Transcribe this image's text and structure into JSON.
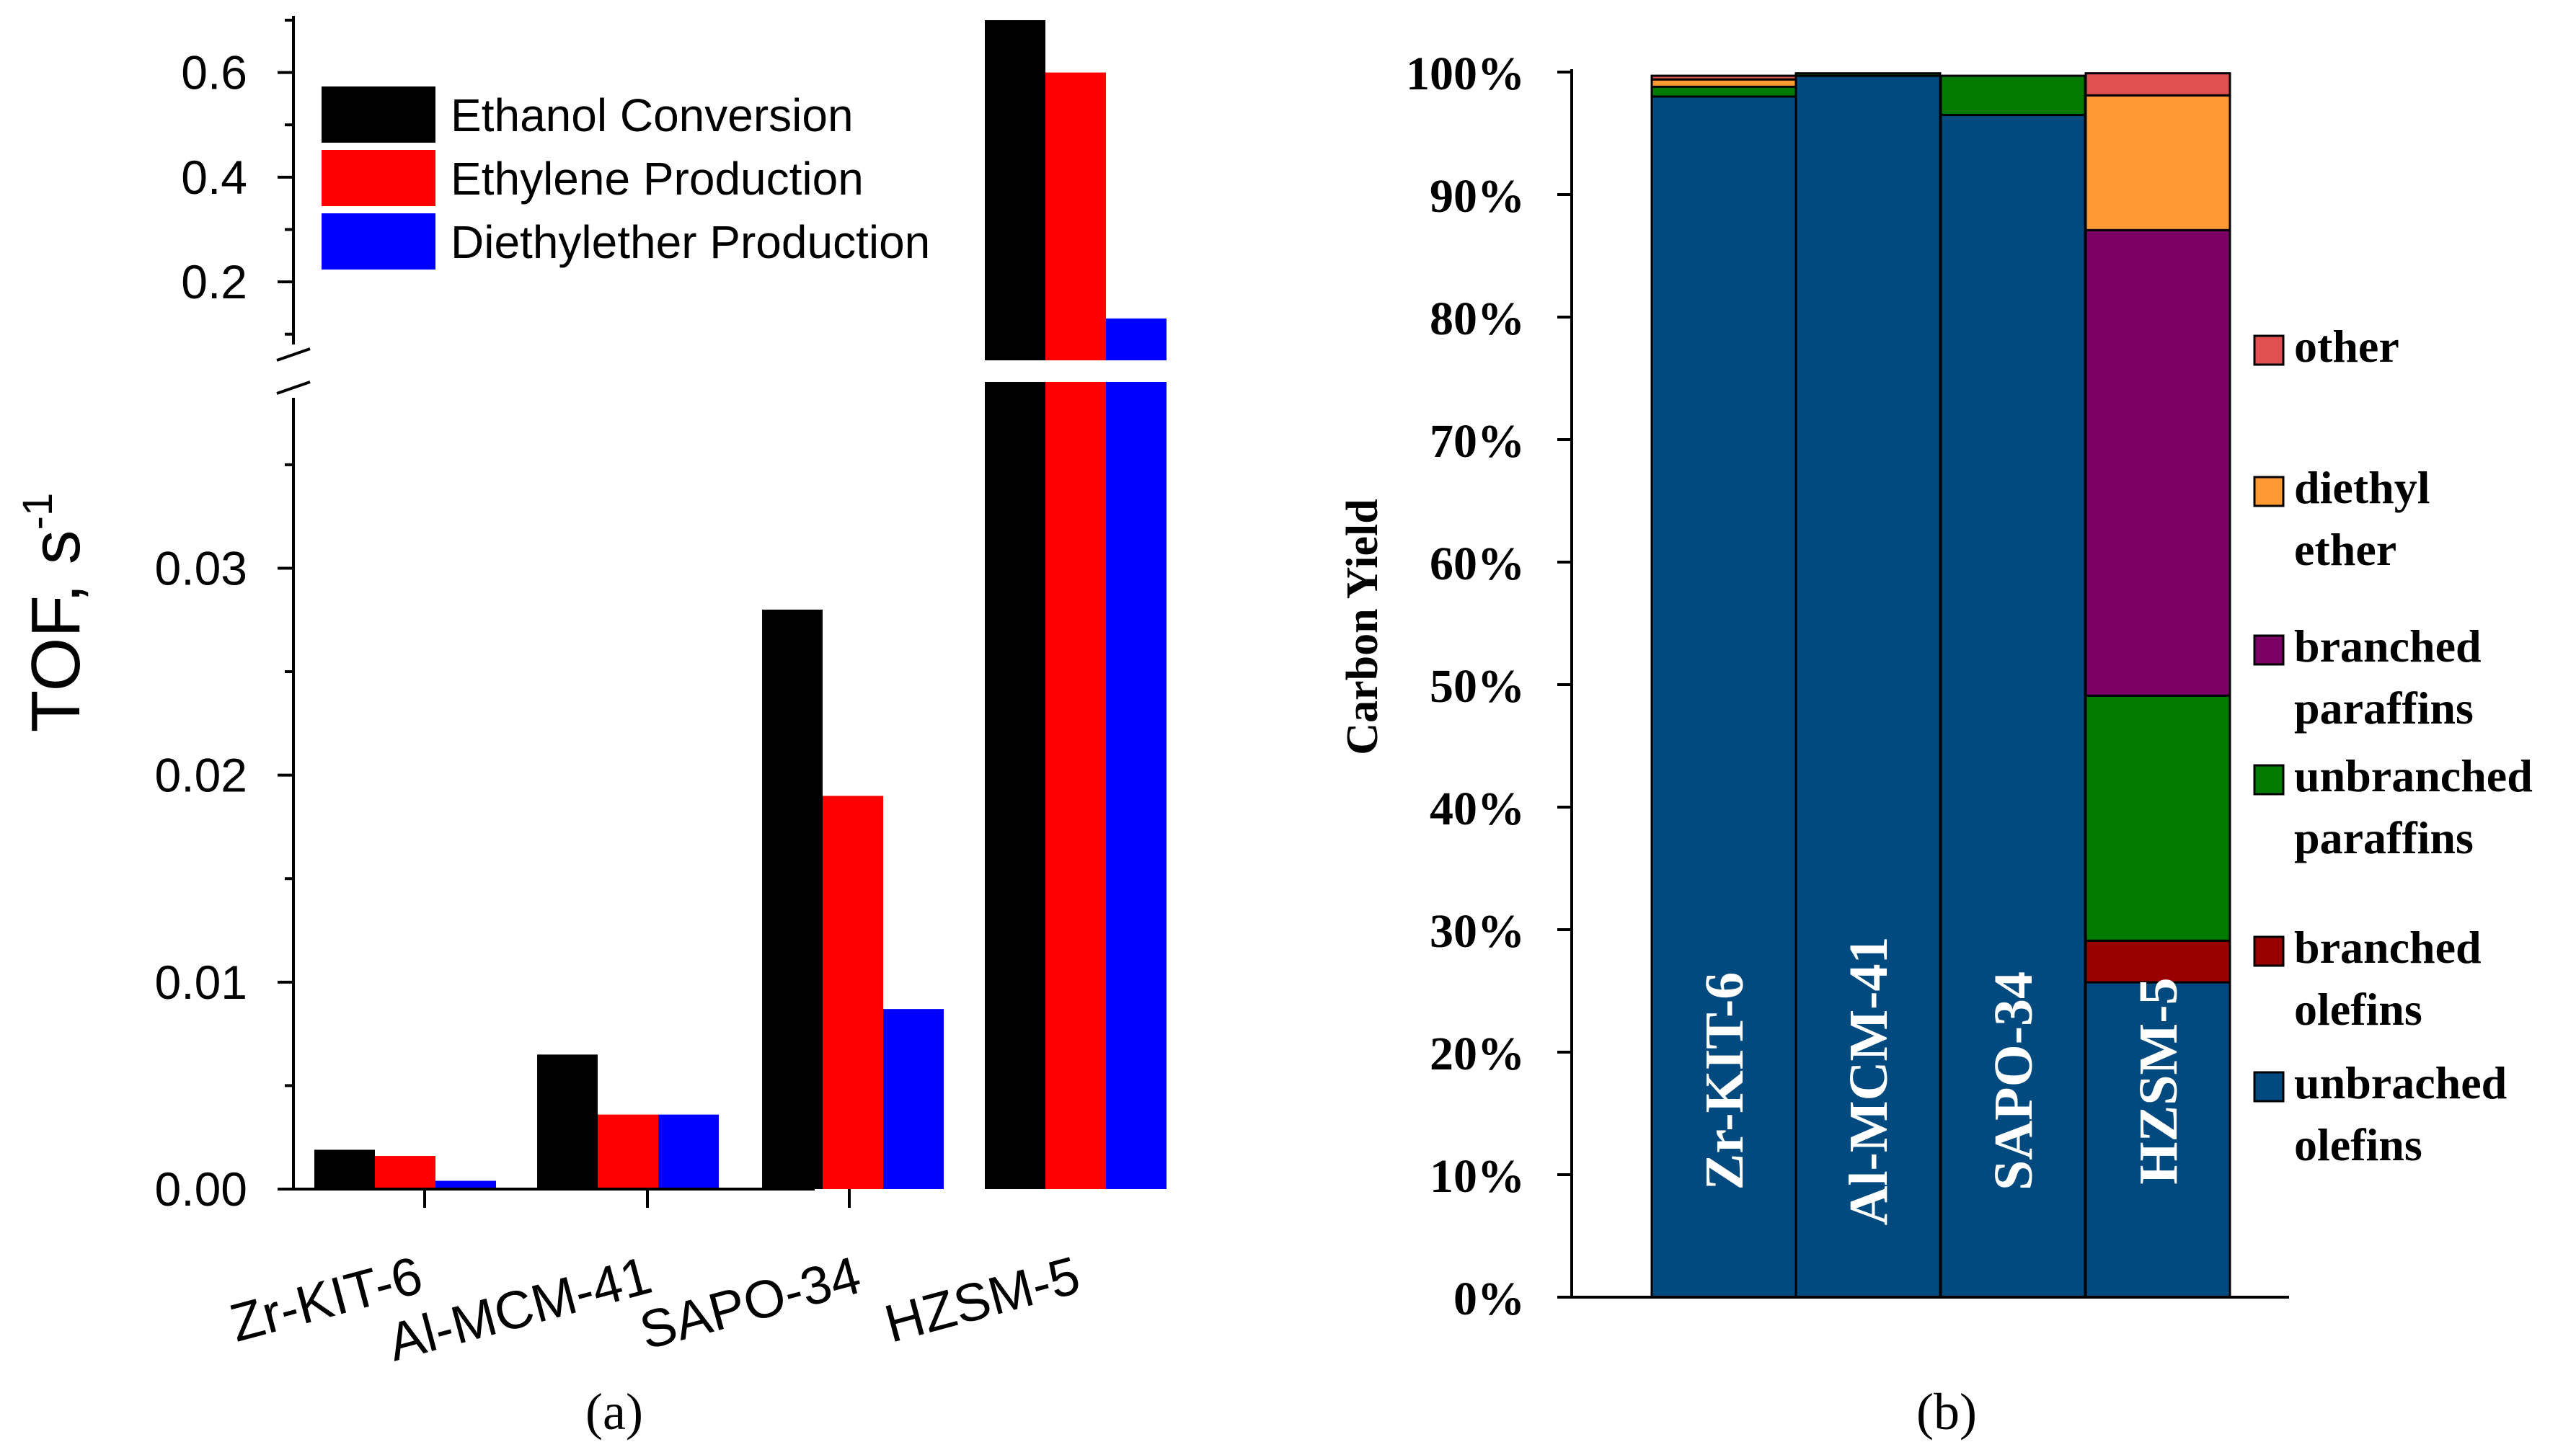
{
  "chart_data": [
    {
      "panel_id": "a",
      "type": "bar",
      "caption": "(a)",
      "ylabel": "TOF, s",
      "ylabel_superscript": "-1",
      "categories": [
        "Zr-KIT-6",
        "Al-MCM-41",
        "SAPO-34",
        "HZSM-5"
      ],
      "series": [
        {
          "name": "Ethanol Conversion",
          "color": "#000000",
          "values": [
            0.0019,
            0.0065,
            0.028,
            0.7
          ]
        },
        {
          "name": "Ethylene Production",
          "color": "#ff0000",
          "values": [
            0.0016,
            0.0036,
            0.019,
            0.6
          ]
        },
        {
          "name": "Diethylether Production",
          "color": "#0000ff",
          "values": [
            0.0004,
            0.0036,
            0.0087,
            0.13
          ]
        }
      ],
      "axis_break": true,
      "lower_ylim": [
        0,
        0.039
      ],
      "upper_ylim": [
        0.05,
        0.7
      ],
      "lower_ticks": [
        "0.00",
        "0.01",
        "0.02",
        "0.03"
      ],
      "lower_tick_values": [
        0,
        0.01,
        0.02,
        0.03
      ],
      "upper_ticks": [
        "0.2",
        "0.4",
        "0.6"
      ],
      "upper_tick_values": [
        0.2,
        0.4,
        0.6
      ],
      "legend_position": "top-left"
    },
    {
      "panel_id": "b",
      "type": "bar",
      "stacked": true,
      "caption": "(b)",
      "ylabel": "Carbon Yield",
      "ylim": [
        0,
        100
      ],
      "yticks": [
        "0%",
        "10%",
        "20%",
        "30%",
        "40%",
        "50%",
        "60%",
        "70%",
        "80%",
        "90%",
        "100%"
      ],
      "ytick_values": [
        0,
        10,
        20,
        30,
        40,
        50,
        60,
        70,
        80,
        90,
        100
      ],
      "categories": [
        "Zr-KIT-6",
        "Al-MCM-41",
        "SAPO-34",
        "HZSM-5"
      ],
      "series": [
        {
          "name": "unbrached olefins",
          "color": "#004a80",
          "values": [
            98,
            99.7,
            96.5,
            25.7
          ]
        },
        {
          "name": "branched olefins",
          "color": "#990000",
          "values": [
            0,
            0,
            0,
            3.4
          ]
        },
        {
          "name": "unbranched paraffins",
          "color": "#007a00",
          "values": [
            0.8,
            0.2,
            3.2,
            20
          ]
        },
        {
          "name": "branched paraffins",
          "color": "#7a0066",
          "values": [
            0,
            0,
            0,
            38
          ]
        },
        {
          "name": "diethyl ether",
          "color": "#ff9933",
          "values": [
            0.6,
            0,
            0,
            11
          ]
        },
        {
          "name": "other",
          "color": "#e05050",
          "values": [
            0.3,
            0,
            0,
            1.8
          ]
        }
      ],
      "legend": [
        {
          "color": "#e05050",
          "lines": [
            "other"
          ]
        },
        {
          "color": "#ff9933",
          "lines": [
            "diethyl",
            "ether"
          ]
        },
        {
          "color": "#7a0066",
          "lines": [
            "branched",
            "paraffins"
          ]
        },
        {
          "color": "#007a00",
          "lines": [
            "unbranched",
            "paraffins"
          ]
        },
        {
          "color": "#990000",
          "lines": [
            "branched",
            "olefins"
          ]
        },
        {
          "color": "#004a80",
          "lines": [
            "unbrached",
            "olefins"
          ]
        }
      ],
      "legend_position": "right"
    }
  ]
}
